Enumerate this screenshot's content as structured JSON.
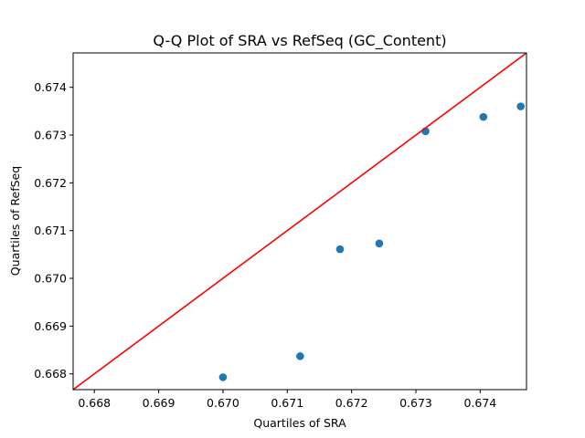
{
  "chart_data": {
    "type": "scatter",
    "title": "Q-Q Plot of SRA vs RefSeq (GC_Content)",
    "xlabel": "Quartiles of SRA",
    "ylabel": "Quartiles of RefSeq",
    "xlim": [
      0.66767,
      0.67472
    ],
    "ylim": [
      0.66767,
      0.67472
    ],
    "xticks": [
      "0.668",
      "0.669",
      "0.670",
      "0.671",
      "0.672",
      "0.673",
      "0.674"
    ],
    "yticks": [
      "0.668",
      "0.669",
      "0.670",
      "0.671",
      "0.672",
      "0.673",
      "0.674"
    ],
    "grid": false,
    "series": [
      {
        "x": [
          0.67,
          0.6712,
          0.67182,
          0.67243,
          0.67315,
          0.67405,
          0.67463
        ],
        "y": [
          0.66793,
          0.66837,
          0.67061,
          0.67073,
          0.67308,
          0.67338,
          0.6736
        ],
        "color": "#1f77b4"
      }
    ],
    "reference_line": {
      "color": "#ff0000",
      "slope": 1,
      "intercept": 0
    }
  }
}
